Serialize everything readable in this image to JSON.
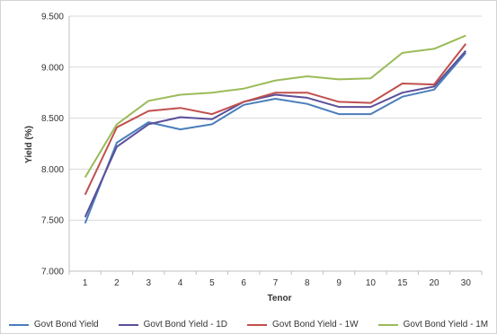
{
  "chart_data": {
    "type": "line",
    "title": "",
    "xlabel": "Tenor",
    "ylabel": "Yield (%)",
    "categories": [
      "1",
      "2",
      "3",
      "4",
      "5",
      "6",
      "7",
      "8",
      "9",
      "10",
      "15",
      "20",
      "30"
    ],
    "ylim": [
      7.0,
      9.5
    ],
    "yticks": [
      "7.000",
      "7.500",
      "8.000",
      "8.500",
      "9.000",
      "9.500"
    ],
    "grid": "horizontal",
    "legend_position": "bottom",
    "series": [
      {
        "name": "Govt Bond Yield",
        "color": "#4a7ebb",
        "values": [
          7.47,
          8.26,
          8.46,
          8.39,
          8.44,
          8.63,
          8.69,
          8.64,
          8.54,
          8.54,
          8.71,
          8.78,
          9.14
        ]
      },
      {
        "name": "Govt Bond Yield - 1D",
        "color": "#5b4f9a",
        "values": [
          7.53,
          8.22,
          8.44,
          8.51,
          8.49,
          8.66,
          8.73,
          8.7,
          8.61,
          8.61,
          8.75,
          8.81,
          9.16
        ]
      },
      {
        "name": "Govt Bond Yield - 1W",
        "color": "#c0504d",
        "values": [
          7.75,
          8.41,
          8.57,
          8.6,
          8.54,
          8.66,
          8.75,
          8.75,
          8.66,
          8.65,
          8.84,
          8.83,
          9.23
        ]
      },
      {
        "name": "Govt Bond Yield - 1M",
        "color": "#9bbb59",
        "values": [
          7.92,
          8.44,
          8.67,
          8.73,
          8.75,
          8.79,
          8.87,
          8.91,
          8.88,
          8.89,
          9.14,
          9.18,
          9.31
        ]
      }
    ]
  }
}
